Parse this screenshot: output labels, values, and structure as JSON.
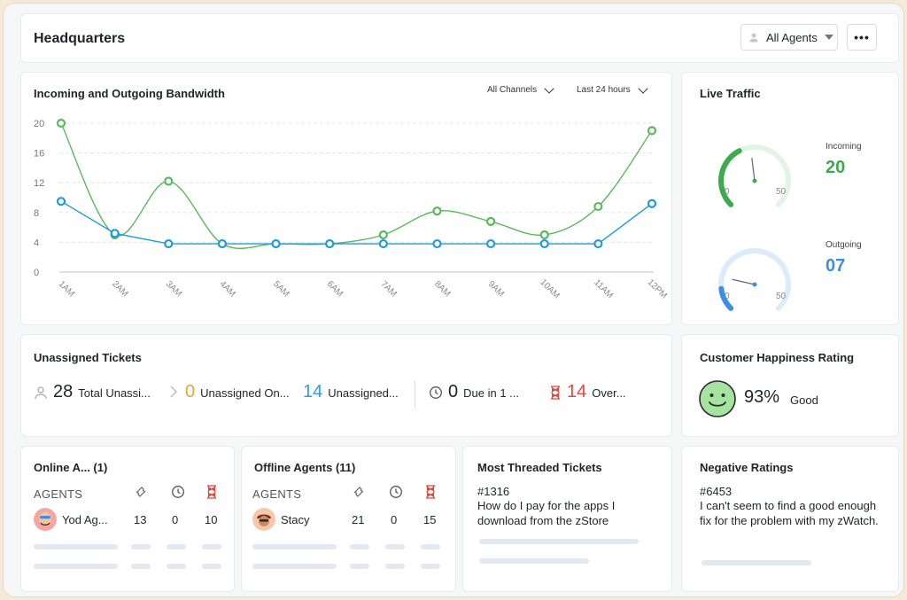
{
  "header": {
    "title": "Headquarters",
    "agents_filter": "All Agents",
    "more": "•••"
  },
  "bandwidth": {
    "title": "Incoming and Outgoing Bandwidth",
    "channel_filter": "All Channels",
    "time_filter": "Last 24 hours"
  },
  "chart_data": {
    "type": "line",
    "x": [
      "1AM",
      "2AM",
      "3AM",
      "4AM",
      "5AM",
      "6AM",
      "7AM",
      "8AM",
      "9AM",
      "10AM",
      "11AM",
      "12PM"
    ],
    "ylim": [
      0,
      20
    ],
    "yticks": [
      0,
      4,
      8,
      12,
      16,
      20
    ],
    "grid": true,
    "series": [
      {
        "color": "#5cb85c",
        "values": [
          20,
          5,
          12.2,
          3.8,
          3.8,
          3.8,
          5,
          8.2,
          6.8,
          5,
          8.8,
          19
        ]
      },
      {
        "color": "#1e9be0",
        "values": [
          9.5,
          5.2,
          3.8,
          3.8,
          3.8,
          3.8,
          3.8,
          3.8,
          3.8,
          3.8,
          3.8,
          9.2
        ]
      }
    ]
  },
  "live_traffic": {
    "title": "Live Traffic",
    "incoming": {
      "label": "Incoming",
      "value": "20",
      "min": "0",
      "max": "50",
      "level": 20,
      "color": "#3daa4c",
      "track": "#e3f3e5"
    },
    "outgoing": {
      "label": "Outgoing",
      "value": "07",
      "min": "0",
      "max": "50",
      "level": 7,
      "color": "#3b8fe6",
      "track": "#dcebfb"
    }
  },
  "unassigned": {
    "title": "Unassigned Tickets",
    "total": {
      "value": "28",
      "label": "Total Unassi..."
    },
    "online": {
      "value": "0",
      "label": "Unassigned On...",
      "color": "#f0a23a"
    },
    "offline": {
      "value": "14",
      "label": "Unassigned...",
      "color": "#2f9de0"
    },
    "due": {
      "value": "0",
      "label": "Due in 1 ..."
    },
    "overdue": {
      "value": "14",
      "label": "Over...",
      "color": "#e0483d"
    }
  },
  "happiness": {
    "title": "Customer Happiness Rating",
    "value": "93%",
    "label": "Good"
  },
  "online_agents": {
    "title": "Online A... (1)",
    "col_header": "AGENTS",
    "row": {
      "name": "Yod Ag...",
      "c1": "13",
      "c2": "0",
      "c3": "10"
    }
  },
  "offline_agents": {
    "title": "Offline Agents (11)",
    "col_header": "AGENTS",
    "row": {
      "name": "Stacy",
      "c1": "21",
      "c2": "0",
      "c3": "15"
    }
  },
  "threaded": {
    "title": "Most Threaded Tickets",
    "id": "#1316",
    "text": "How do I pay for the apps I download from the zStore"
  },
  "negative": {
    "title": "Negative Ratings",
    "id": "#6453",
    "text": "I can't seem to find a good enough fix for the problem with my zWatch."
  }
}
